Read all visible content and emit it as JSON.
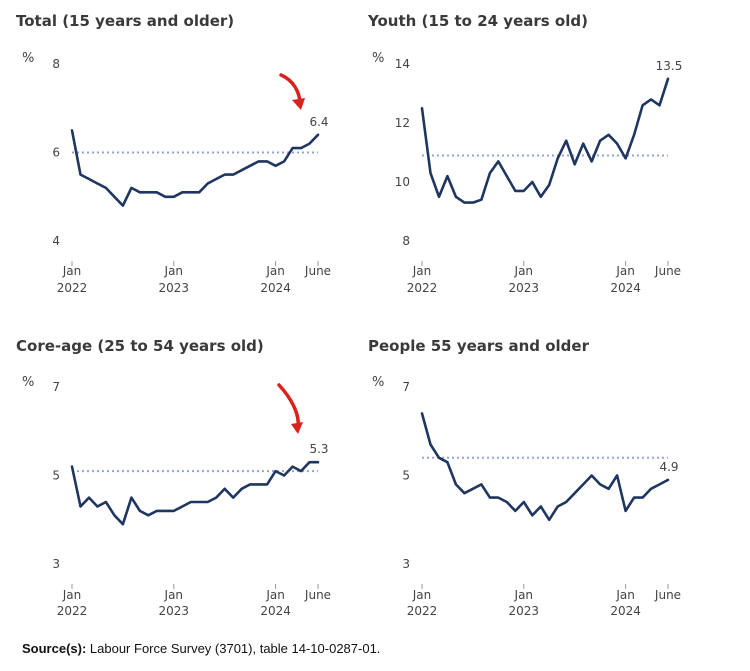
{
  "source": {
    "label": "Source(s):",
    "text": " Labour Force Survey (3701), table 14-10-0287-01."
  },
  "colors": {
    "line": "#1f3660",
    "reference": "#8fa6d6",
    "annotation_arrow": "#d9221c",
    "axis": "#999999"
  },
  "annotations": [
    {
      "chart": 0,
      "icon": "red-curved-arrow-icon"
    },
    {
      "chart": 2,
      "icon": "red-curved-arrow-icon"
    }
  ],
  "chart_data": [
    {
      "type": "line",
      "title": "Total (15 years and older)",
      "unit": "%",
      "ylim": [
        4,
        8
      ],
      "yticks": [
        4,
        6,
        8
      ],
      "reference_value": 6.0,
      "last_value_label": "6.4",
      "xticks": [
        {
          "index": 0,
          "line1": "Jan",
          "line2": "2022"
        },
        {
          "index": 12,
          "line1": "Jan",
          "line2": "2023"
        },
        {
          "index": 24,
          "line1": "Jan",
          "line2": "2024"
        },
        {
          "index": 29,
          "line1": "June",
          "line2": ""
        }
      ],
      "values": [
        6.5,
        5.5,
        5.4,
        5.3,
        5.2,
        5.0,
        4.8,
        5.2,
        5.1,
        5.1,
        5.1,
        5.0,
        5.0,
        5.1,
        5.1,
        5.1,
        5.3,
        5.4,
        5.5,
        5.5,
        5.6,
        5.7,
        5.8,
        5.8,
        5.7,
        5.8,
        6.1,
        6.1,
        6.2,
        6.4
      ]
    },
    {
      "type": "line",
      "title": "Youth (15 to 24 years old)",
      "unit": "%",
      "ylim": [
        8,
        14
      ],
      "yticks": [
        8,
        10,
        12,
        14
      ],
      "reference_value": 10.9,
      "last_value_label": "13.5",
      "xticks": [
        {
          "index": 0,
          "line1": "Jan",
          "line2": "2022"
        },
        {
          "index": 12,
          "line1": "Jan",
          "line2": "2023"
        },
        {
          "index": 24,
          "line1": "Jan",
          "line2": "2024"
        },
        {
          "index": 29,
          "line1": "June",
          "line2": ""
        }
      ],
      "values": [
        12.5,
        10.3,
        9.5,
        10.2,
        9.5,
        9.3,
        9.3,
        9.4,
        10.3,
        10.7,
        10.2,
        9.7,
        9.7,
        10.0,
        9.5,
        9.9,
        10.8,
        11.4,
        10.6,
        11.3,
        10.7,
        11.4,
        11.6,
        11.3,
        10.8,
        11.6,
        12.6,
        12.8,
        12.6,
        13.5
      ]
    },
    {
      "type": "line",
      "title": "Core-age (25 to 54 years old)",
      "unit": "%",
      "ylim": [
        3,
        7
      ],
      "yticks": [
        3,
        5,
        7
      ],
      "reference_value": 5.1,
      "last_value_label": "5.3",
      "xticks": [
        {
          "index": 0,
          "line1": "Jan",
          "line2": "2022"
        },
        {
          "index": 12,
          "line1": "Jan",
          "line2": "2023"
        },
        {
          "index": 24,
          "line1": "Jan",
          "line2": "2024"
        },
        {
          "index": 29,
          "line1": "June",
          "line2": ""
        }
      ],
      "values": [
        5.2,
        4.3,
        4.5,
        4.3,
        4.4,
        4.1,
        3.9,
        4.5,
        4.2,
        4.1,
        4.2,
        4.2,
        4.2,
        4.3,
        4.4,
        4.4,
        4.4,
        4.5,
        4.7,
        4.5,
        4.7,
        4.8,
        4.8,
        4.8,
        5.1,
        5.0,
        5.2,
        5.1,
        5.3,
        5.3
      ]
    },
    {
      "type": "line",
      "title": "People 55 years and older",
      "unit": "%",
      "ylim": [
        3,
        7
      ],
      "yticks": [
        3,
        5,
        7
      ],
      "reference_value": 5.4,
      "last_value_label": "4.9",
      "xticks": [
        {
          "index": 0,
          "line1": "Jan",
          "line2": "2022"
        },
        {
          "index": 12,
          "line1": "Jan",
          "line2": "2023"
        },
        {
          "index": 24,
          "line1": "Jan",
          "line2": "2024"
        },
        {
          "index": 29,
          "line1": "June",
          "line2": ""
        }
      ],
      "values": [
        6.4,
        5.7,
        5.4,
        5.3,
        4.8,
        4.6,
        4.7,
        4.8,
        4.5,
        4.5,
        4.4,
        4.2,
        4.4,
        4.1,
        4.3,
        4.0,
        4.3,
        4.4,
        4.6,
        4.8,
        5.0,
        4.8,
        4.7,
        5.0,
        4.2,
        4.5,
        4.5,
        4.7,
        4.8,
        4.9
      ]
    }
  ]
}
